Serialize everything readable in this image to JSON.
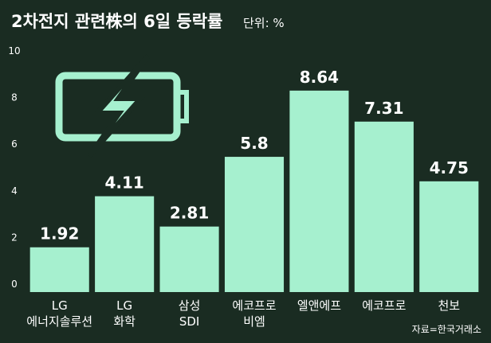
{
  "chart_data": {
    "type": "bar",
    "title": "2차전지 관련株의 6일 등락률",
    "subtitle": "단위: %",
    "source": "자료=한국거래소",
    "categories": [
      "LG\n에너지솔루션",
      "LG\n화학",
      "삼성\nSDI",
      "에코프로\n비엠",
      "엘앤에프",
      "에코프로",
      "천보"
    ],
    "values": [
      1.92,
      4.11,
      2.81,
      5.8,
      8.64,
      7.31,
      4.75
    ],
    "color": "#a6f0cf",
    "ylim": [
      0,
      10
    ],
    "yticks": [
      0,
      2,
      4,
      6,
      8,
      10
    ],
    "grid": false
  }
}
